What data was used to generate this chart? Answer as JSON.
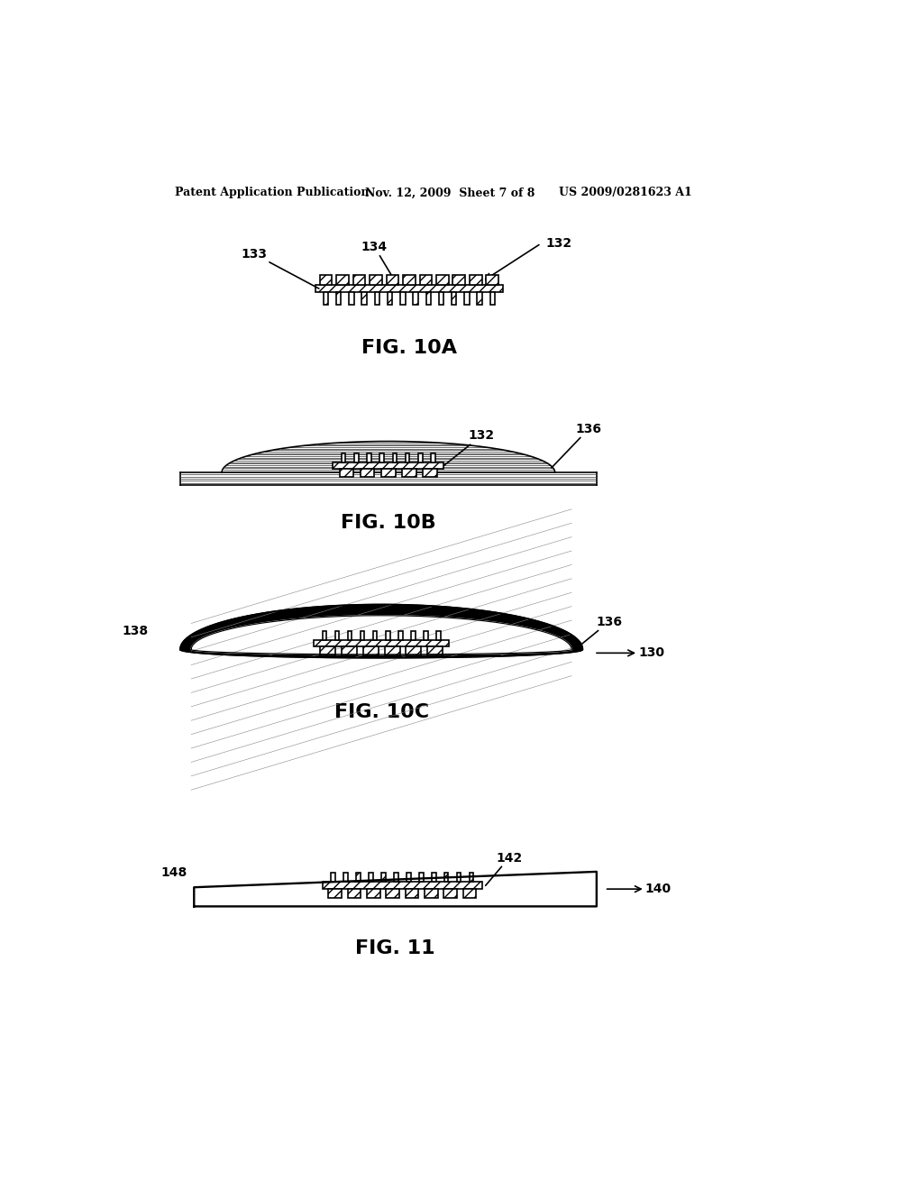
{
  "bg_color": "#ffffff",
  "header_left": "Patent Application Publication",
  "header_mid": "Nov. 12, 2009  Sheet 7 of 8",
  "header_right": "US 2009/0281623 A1",
  "fig10a_label": "FIG. 10A",
  "fig10b_label": "FIG. 10B",
  "fig10c_label": "FIG. 10C",
  "fig11_label": "FIG. 11",
  "line_color": "#000000"
}
